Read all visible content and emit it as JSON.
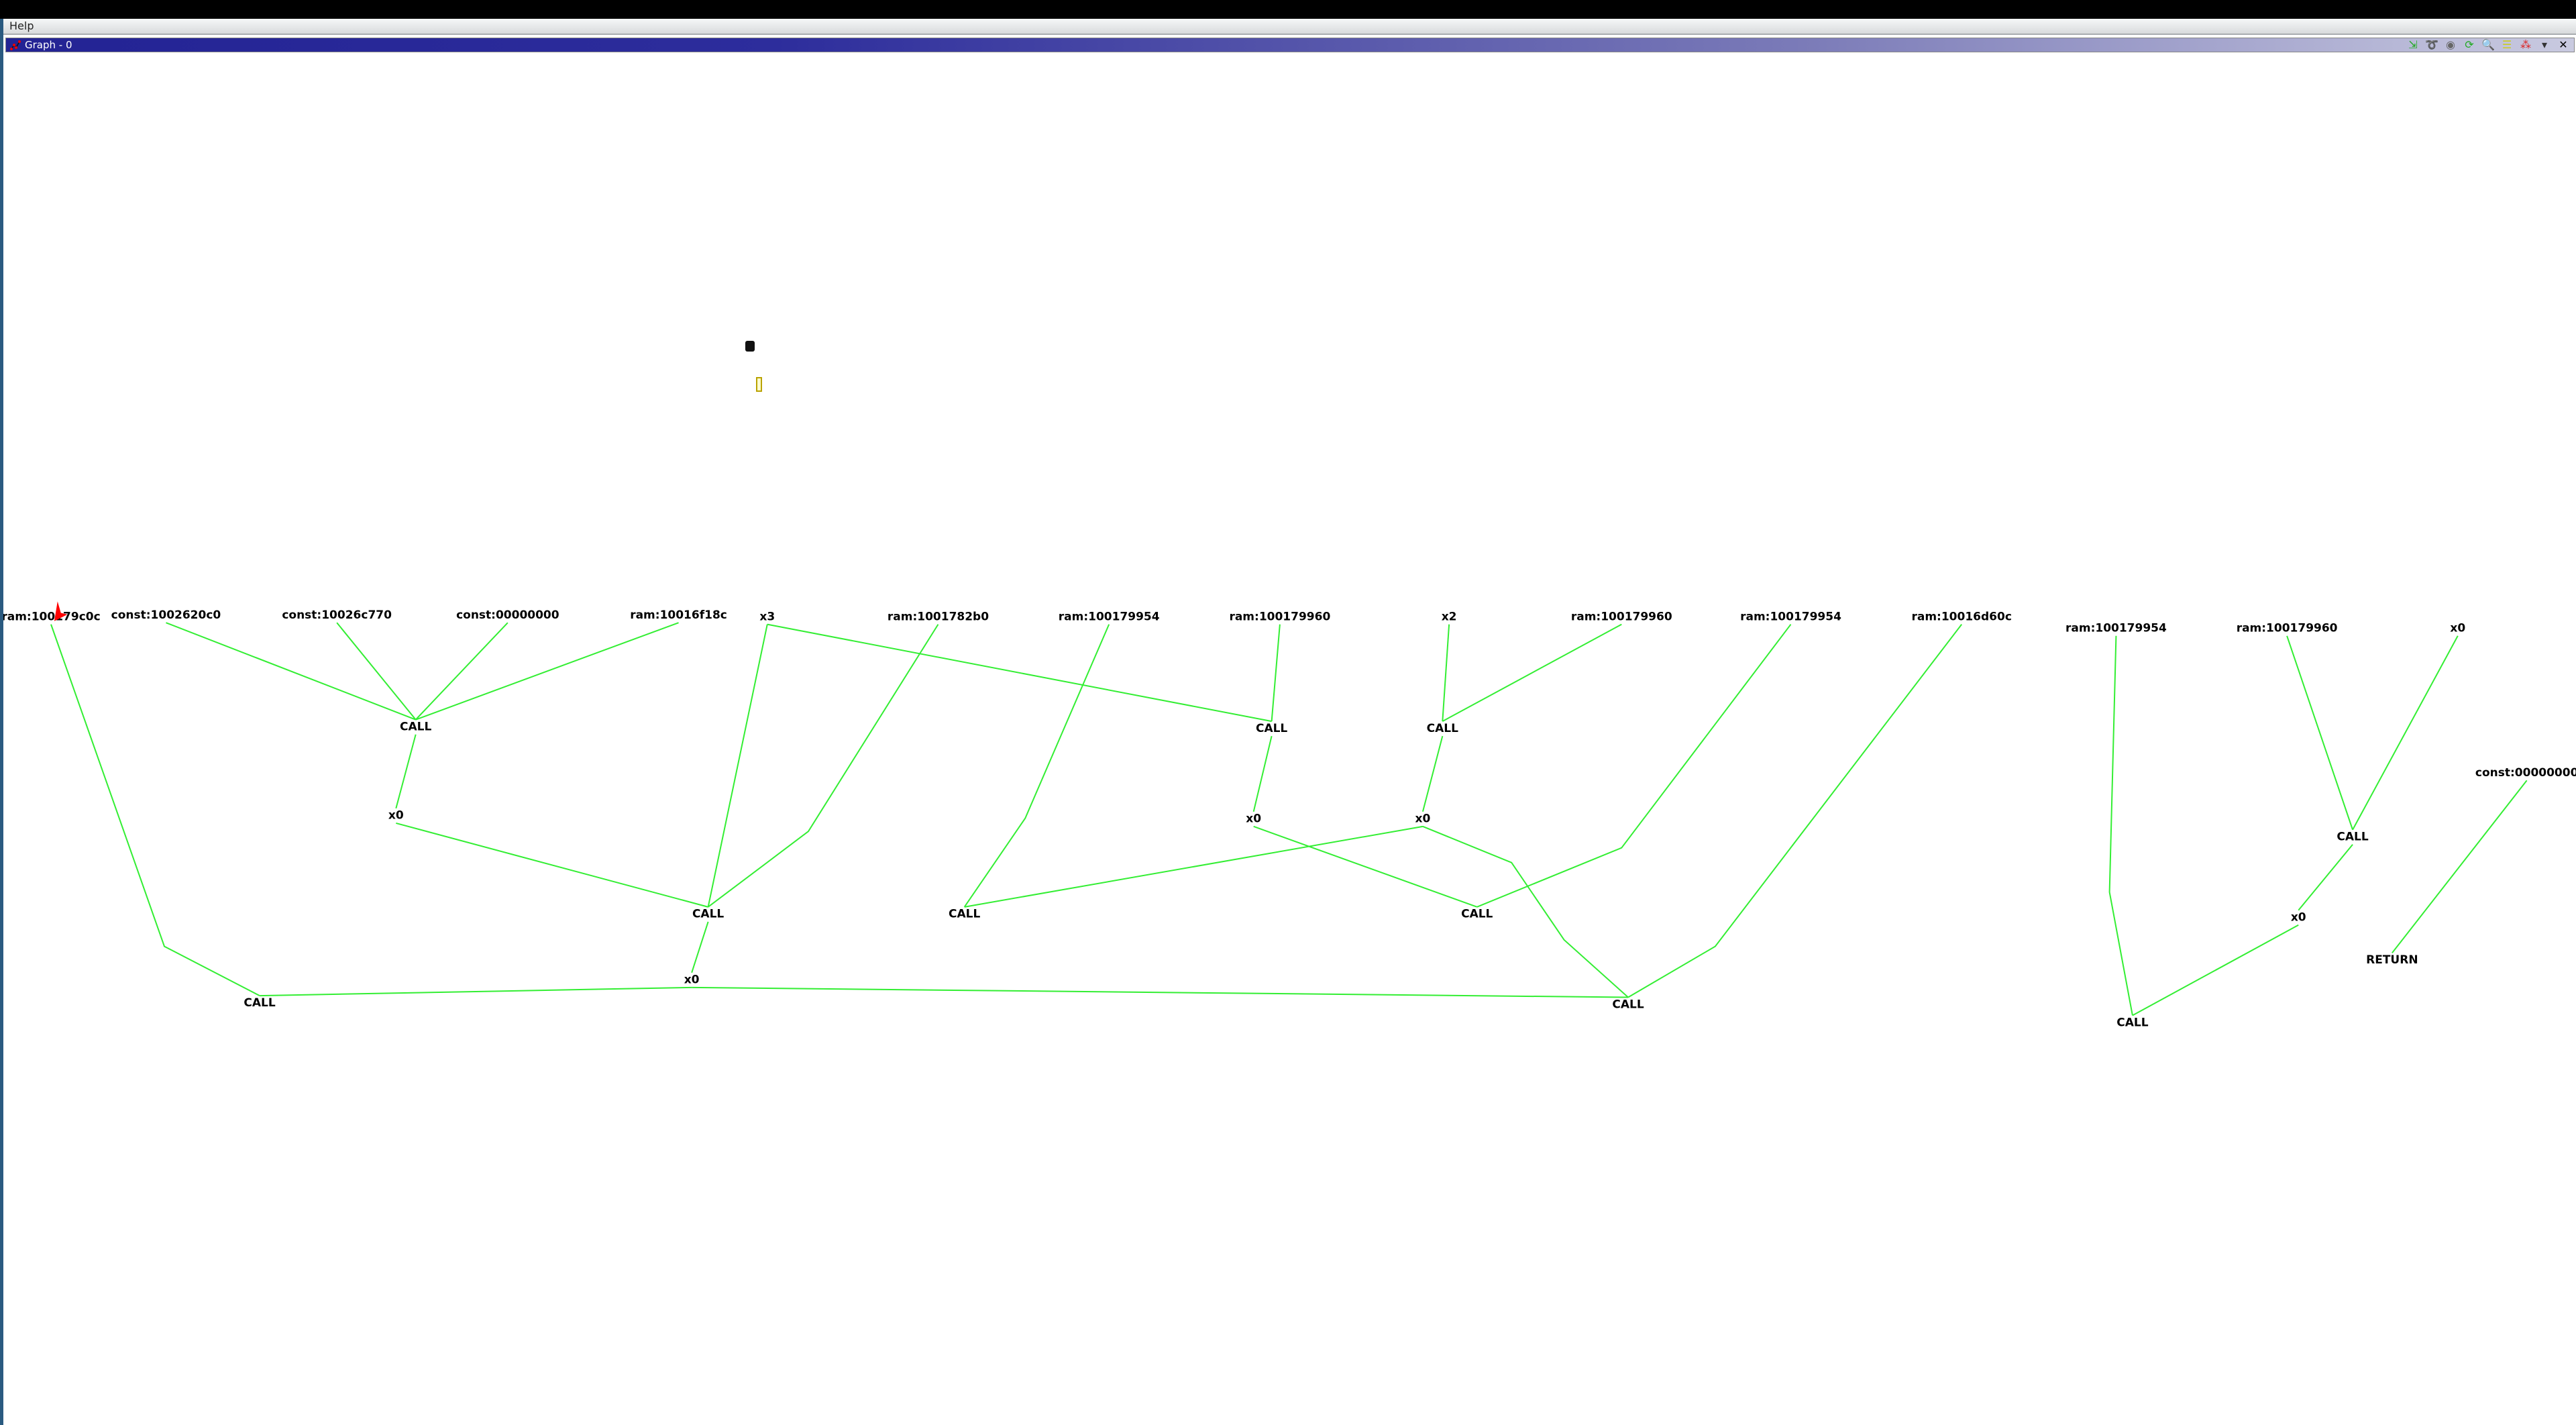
{
  "menu": {
    "help": "Help"
  },
  "window": {
    "title": "Graph - 0"
  },
  "toolbar": [
    {
      "name": "export-graph-icon",
      "glyph": "⇲"
    },
    {
      "name": "lasso-icon",
      "glyph": "➰"
    },
    {
      "name": "layout-icon",
      "glyph": "◉"
    },
    {
      "name": "refresh-icon",
      "glyph": "⟳"
    },
    {
      "name": "zoom-icon",
      "glyph": "🔍"
    },
    {
      "name": "filter-icon",
      "glyph": "☰"
    },
    {
      "name": "graph-nodes-icon",
      "glyph": "⁂"
    },
    {
      "name": "dropdown-icon",
      "glyph": "▾"
    },
    {
      "name": "close-icon",
      "glyph": "✕"
    }
  ],
  "colors": {
    "edge": "#33ee33",
    "title_bar": "#232394",
    "ram_outline": "#ee2222",
    "const_outline": "#117711"
  },
  "graph": {
    "nodes": [
      "ram:100179c0c",
      "const:1002620c0",
      "const:10026c770",
      "const:00000000",
      "ram:10016f18c",
      "x3",
      "ram:1001782b0",
      "ram:100179954",
      "ram:100179960",
      "x2",
      "ram:100179960",
      "ram:100179954",
      "ram:10016d60c",
      "ram:100179954",
      "ram:100179960",
      "x0",
      "const:00000000",
      "CALL",
      "x0",
      "CALL",
      "x0",
      "CALL",
      "CALL",
      "CALL",
      "x0",
      "x0",
      "CALL",
      "CALL",
      "CALL",
      "CALL",
      "x0",
      "RETURN",
      "CALL"
    ],
    "edges": [
      [
        0,
        21
      ],
      [
        1,
        17
      ],
      [
        2,
        17
      ],
      [
        3,
        17
      ],
      [
        4,
        17
      ],
      [
        17,
        18
      ],
      [
        18,
        19
      ],
      [
        5,
        19
      ],
      [
        6,
        19
      ],
      [
        19,
        20
      ],
      [
        20,
        21
      ],
      [
        20,
        28
      ],
      [
        5,
        22
      ],
      [
        7,
        26
      ],
      [
        8,
        22
      ],
      [
        22,
        24
      ],
      [
        24,
        27
      ],
      [
        9,
        23
      ],
      [
        10,
        23
      ],
      [
        23,
        25
      ],
      [
        25,
        26
      ],
      [
        25,
        28
      ],
      [
        11,
        27
      ],
      [
        12,
        28
      ],
      [
        13,
        32
      ],
      [
        14,
        29
      ],
      [
        15,
        29
      ],
      [
        29,
        30
      ],
      [
        30,
        32
      ],
      [
        16,
        31
      ]
    ]
  }
}
